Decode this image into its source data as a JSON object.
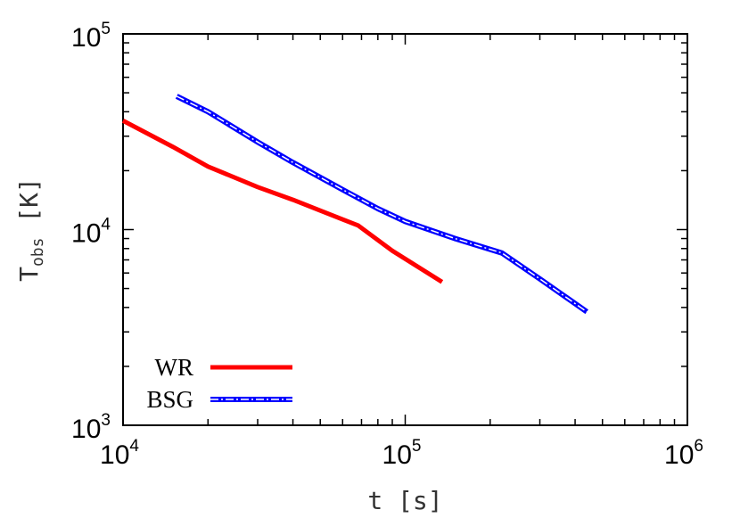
{
  "chart_data": {
    "type": "line",
    "xscale": "log",
    "yscale": "log",
    "xlim": [
      10000,
      1000000
    ],
    "ylim": [
      1000,
      100000
    ],
    "xlabel": "t [s]",
    "ylabel": {
      "main": "T",
      "sub": "obs",
      "unit": " [K]"
    },
    "x_ticks": [
      {
        "base": "10",
        "exp": "4",
        "value": 10000
      },
      {
        "base": "10",
        "exp": "5",
        "value": 100000
      },
      {
        "base": "10",
        "exp": "6",
        "value": 1000000
      }
    ],
    "y_ticks": [
      {
        "base": "10",
        "exp": "3",
        "value": 1000
      },
      {
        "base": "10",
        "exp": "4",
        "value": 10000
      },
      {
        "base": "10",
        "exp": "5",
        "value": 100000
      }
    ],
    "grid": false,
    "legend_position": "bottom-left",
    "series": [
      {
        "name": "WR",
        "color": "#ff0000",
        "style": "solid",
        "x": [
          10000,
          15000,
          20000,
          30000,
          40000,
          50000,
          68000,
          90000,
          135000
        ],
        "y": [
          36000,
          26500,
          21000,
          16500,
          14200,
          12500,
          10500,
          7800,
          5400
        ]
      },
      {
        "name": "BSG",
        "color": "#0000ff",
        "style": "dash-dot",
        "x": [
          15500,
          20000,
          30000,
          40000,
          60000,
          80000,
          100000,
          150000,
          220000,
          300000,
          440000
        ],
        "y": [
          48000,
          40000,
          28000,
          22000,
          16000,
          12800,
          11000,
          9000,
          7600,
          5600,
          3800
        ]
      }
    ]
  }
}
